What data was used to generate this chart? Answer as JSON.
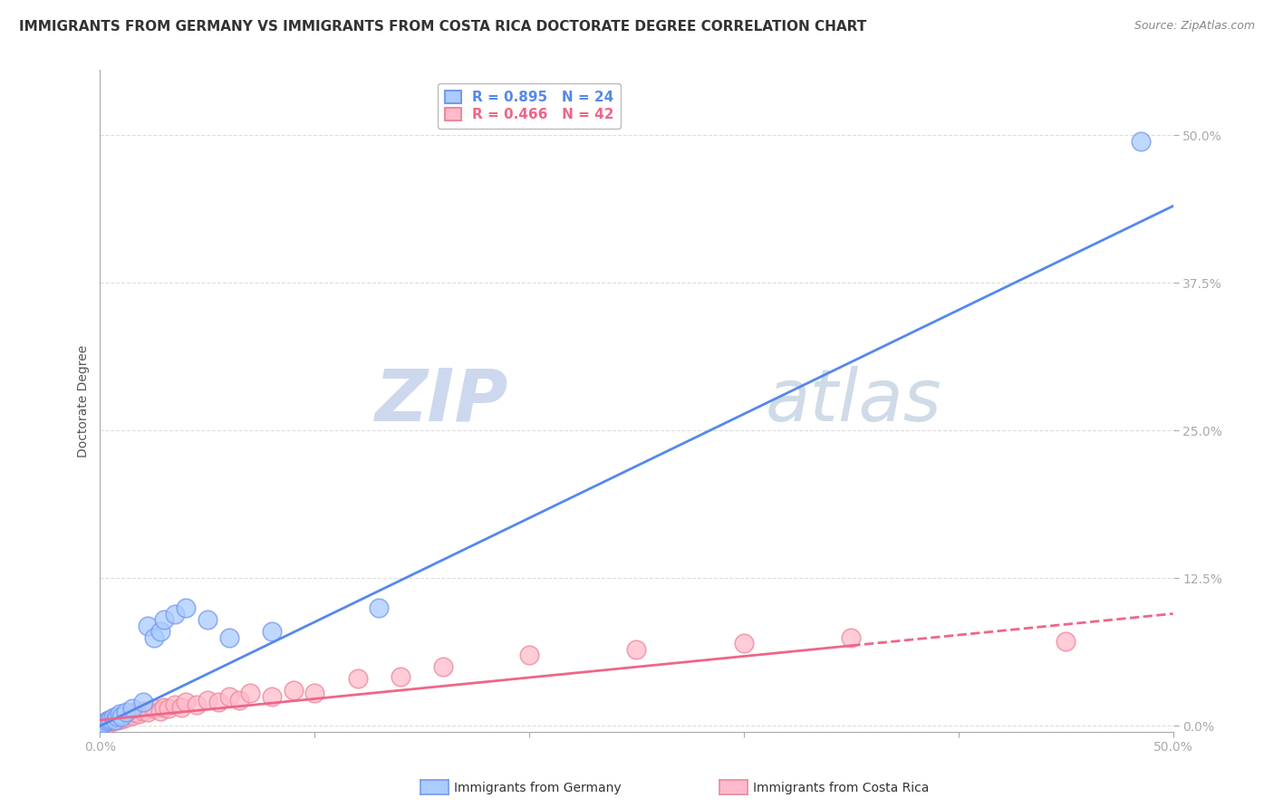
{
  "title": "IMMIGRANTS FROM GERMANY VS IMMIGRANTS FROM COSTA RICA DOCTORATE DEGREE CORRELATION CHART",
  "source": "Source: ZipAtlas.com",
  "ylabel": "Doctorate Degree",
  "y_tick_labels": [
    "0.0%",
    "12.5%",
    "25.0%",
    "37.5%",
    "50.0%"
  ],
  "y_tick_values": [
    0.0,
    0.125,
    0.25,
    0.375,
    0.5
  ],
  "xlim": [
    0.0,
    0.5
  ],
  "ylim": [
    -0.005,
    0.555
  ],
  "germany_R": 0.895,
  "germany_N": 24,
  "costarica_R": 0.466,
  "costarica_N": 42,
  "germany_scatter_x": [
    0.001,
    0.002,
    0.003,
    0.004,
    0.005,
    0.006,
    0.007,
    0.008,
    0.009,
    0.01,
    0.012,
    0.015,
    0.02,
    0.022,
    0.025,
    0.028,
    0.03,
    0.035,
    0.04,
    0.05,
    0.06,
    0.08,
    0.13,
    0.485
  ],
  "germany_scatter_y": [
    0.002,
    0.003,
    0.004,
    0.005,
    0.006,
    0.007,
    0.005,
    0.008,
    0.01,
    0.008,
    0.012,
    0.015,
    0.02,
    0.085,
    0.075,
    0.08,
    0.09,
    0.095,
    0.1,
    0.09,
    0.075,
    0.08,
    0.1,
    0.495
  ],
  "costarica_scatter_x": [
    0.001,
    0.002,
    0.003,
    0.004,
    0.005,
    0.006,
    0.007,
    0.008,
    0.009,
    0.01,
    0.011,
    0.012,
    0.013,
    0.015,
    0.016,
    0.018,
    0.02,
    0.022,
    0.025,
    0.028,
    0.03,
    0.032,
    0.035,
    0.038,
    0.04,
    0.045,
    0.05,
    0.055,
    0.06,
    0.065,
    0.07,
    0.08,
    0.09,
    0.1,
    0.12,
    0.14,
    0.16,
    0.2,
    0.25,
    0.3,
    0.35,
    0.45
  ],
  "costarica_scatter_y": [
    0.002,
    0.003,
    0.004,
    0.003,
    0.005,
    0.004,
    0.006,
    0.005,
    0.007,
    0.006,
    0.008,
    0.007,
    0.01,
    0.009,
    0.012,
    0.01,
    0.013,
    0.012,
    0.015,
    0.013,
    0.016,
    0.015,
    0.018,
    0.016,
    0.02,
    0.018,
    0.022,
    0.02,
    0.025,
    0.022,
    0.028,
    0.025,
    0.03,
    0.028,
    0.04,
    0.042,
    0.05,
    0.06,
    0.065,
    0.07,
    0.075,
    0.072
  ],
  "germany_line_color": "#5588EE",
  "costarica_line_color": "#EE6688",
  "germany_scatter_facecolor": "#AACCFF",
  "germany_scatter_edgecolor": "#7799EE",
  "costarica_scatter_facecolor": "#FFBBCC",
  "costarica_scatter_edgecolor": "#EE8899",
  "background_color": "#FFFFFF",
  "grid_color": "#DDDDDD",
  "watermark_color": "#E8EEF8",
  "legend_germany_color": "#AACCFF",
  "legend_germany_edge": "#7799EE",
  "legend_costarica_color": "#FFBBCC",
  "legend_costarica_edge": "#EE8899",
  "title_fontsize": 11,
  "ylabel_fontsize": 10,
  "tick_fontsize": 10,
  "legend_fontsize": 11,
  "source_fontsize": 9,
  "axis_color": "#AAAAAA",
  "tick_color": "#5588EE"
}
